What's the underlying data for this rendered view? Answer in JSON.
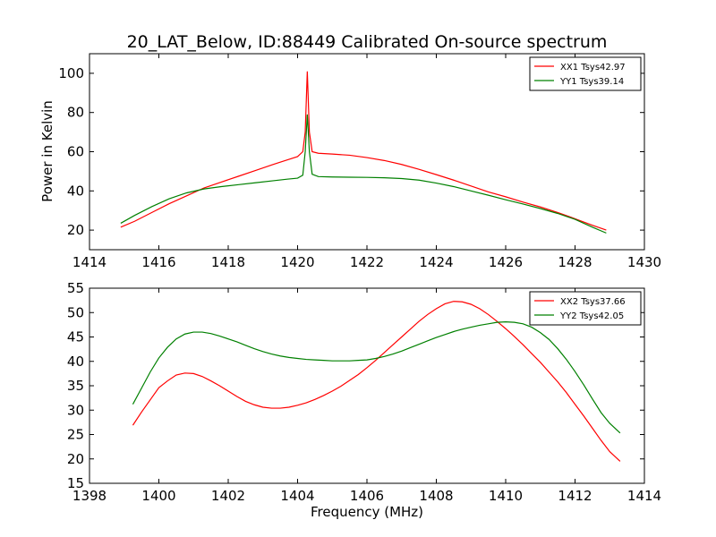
{
  "figure": {
    "title": "20_LAT_Below, ID:88449 Calibrated On-source spectrum",
    "ylabel": "Power in Kelvin",
    "xlabel": "Frequency (MHz)"
  },
  "chart_data": [
    {
      "type": "line",
      "xlim": [
        1414,
        1430
      ],
      "ylim": [
        10,
        110
      ],
      "xticks": [
        1414,
        1416,
        1418,
        1420,
        1422,
        1424,
        1426,
        1428,
        1430
      ],
      "yticks": [
        20,
        40,
        60,
        80,
        100
      ],
      "grid": false,
      "legend": "top-right",
      "series": [
        {
          "name": "XX1 Tsys42.97",
          "color": "#ff0000",
          "x": [
            1414.9,
            1415.3,
            1415.8,
            1416.3,
            1416.8,
            1417.3,
            1417.8,
            1418.3,
            1418.8,
            1419.3,
            1419.7,
            1420.0,
            1420.15,
            1420.22,
            1420.28,
            1420.34,
            1420.42,
            1420.6,
            1421.0,
            1421.5,
            1422.0,
            1422.5,
            1423.0,
            1423.5,
            1424.0,
            1424.5,
            1425.0,
            1425.5,
            1426.0,
            1426.5,
            1427.0,
            1427.5,
            1428.0,
            1428.5,
            1428.9
          ],
          "y": [
            21.5,
            24.5,
            29.0,
            33.5,
            37.5,
            41.5,
            44.5,
            47.5,
            50.5,
            53.5,
            55.8,
            57.5,
            60.0,
            70.0,
            101.0,
            70.0,
            60.0,
            59.2,
            58.8,
            58.2,
            57.0,
            55.5,
            53.5,
            51.0,
            48.3,
            45.5,
            42.5,
            39.5,
            37.0,
            34.3,
            31.8,
            29.0,
            25.8,
            22.5,
            20.0
          ]
        },
        {
          "name": "YY1 Tsys39.14",
          "color": "#008000",
          "x": [
            1414.9,
            1415.3,
            1415.8,
            1416.3,
            1416.8,
            1417.3,
            1417.8,
            1418.3,
            1418.8,
            1419.3,
            1419.7,
            1420.0,
            1420.15,
            1420.22,
            1420.28,
            1420.34,
            1420.42,
            1420.6,
            1421.0,
            1421.5,
            1422.0,
            1422.5,
            1423.0,
            1423.5,
            1424.0,
            1424.5,
            1425.0,
            1425.5,
            1426.0,
            1426.5,
            1427.0,
            1427.5,
            1428.0,
            1428.5,
            1428.9
          ],
          "y": [
            23.5,
            27.5,
            32.0,
            36.0,
            39.0,
            41.0,
            42.2,
            43.2,
            44.2,
            45.2,
            46.0,
            46.5,
            48.0,
            60.0,
            79.0,
            60.0,
            48.5,
            47.3,
            47.1,
            47.0,
            46.9,
            46.7,
            46.3,
            45.5,
            44.0,
            42.2,
            40.0,
            37.8,
            35.5,
            33.3,
            31.0,
            28.5,
            25.5,
            21.5,
            18.5
          ]
        }
      ]
    },
    {
      "type": "line",
      "xlim": [
        1398,
        1414
      ],
      "ylim": [
        15,
        55
      ],
      "xticks": [
        1398,
        1400,
        1402,
        1404,
        1406,
        1408,
        1410,
        1412,
        1414
      ],
      "yticks": [
        15,
        20,
        25,
        30,
        35,
        40,
        45,
        50,
        55
      ],
      "grid": false,
      "legend": "top-right",
      "series": [
        {
          "name": "XX2 Tsys37.66",
          "color": "#ff0000",
          "x": [
            1399.25,
            1399.5,
            1399.75,
            1400.0,
            1400.25,
            1400.5,
            1400.75,
            1401.0,
            1401.25,
            1401.5,
            1401.75,
            1402.0,
            1402.25,
            1402.5,
            1402.75,
            1403.0,
            1403.25,
            1403.5,
            1403.75,
            1404.0,
            1404.25,
            1404.5,
            1404.75,
            1405.0,
            1405.25,
            1405.5,
            1405.75,
            1406.0,
            1406.25,
            1406.5,
            1406.75,
            1407.0,
            1407.25,
            1407.5,
            1407.75,
            1408.0,
            1408.25,
            1408.5,
            1408.75,
            1409.0,
            1409.25,
            1409.5,
            1409.75,
            1410.0,
            1410.25,
            1410.5,
            1410.75,
            1411.0,
            1411.25,
            1411.5,
            1411.75,
            1412.0,
            1412.25,
            1412.5,
            1412.75,
            1413.0,
            1413.3
          ],
          "y": [
            26.9,
            29.6,
            32.1,
            34.6,
            36.0,
            37.2,
            37.6,
            37.5,
            36.9,
            36.0,
            35.0,
            33.9,
            32.8,
            31.8,
            31.1,
            30.6,
            30.4,
            30.4,
            30.6,
            31.0,
            31.5,
            32.2,
            33.0,
            33.9,
            34.9,
            36.1,
            37.3,
            38.7,
            40.2,
            41.8,
            43.4,
            45.0,
            46.6,
            48.2,
            49.6,
            50.8,
            51.8,
            52.3,
            52.2,
            51.7,
            50.8,
            49.6,
            48.2,
            46.7,
            45.1,
            43.4,
            41.6,
            39.8,
            37.8,
            35.8,
            33.6,
            31.2,
            28.8,
            26.3,
            23.8,
            21.5,
            19.5
          ]
        },
        {
          "name": "YY2 Tsys42.05",
          "color": "#008000",
          "x": [
            1399.25,
            1399.5,
            1399.75,
            1400.0,
            1400.25,
            1400.5,
            1400.75,
            1401.0,
            1401.25,
            1401.5,
            1401.75,
            1402.0,
            1402.25,
            1402.5,
            1402.75,
            1403.0,
            1403.25,
            1403.5,
            1403.75,
            1404.0,
            1404.25,
            1404.5,
            1404.75,
            1405.0,
            1405.25,
            1405.5,
            1405.75,
            1406.0,
            1406.25,
            1406.5,
            1406.75,
            1407.0,
            1407.25,
            1407.5,
            1407.75,
            1408.0,
            1408.25,
            1408.5,
            1408.75,
            1409.0,
            1409.25,
            1409.5,
            1409.75,
            1410.0,
            1410.25,
            1410.5,
            1410.75,
            1411.0,
            1411.25,
            1411.5,
            1411.75,
            1412.0,
            1412.25,
            1412.5,
            1412.75,
            1413.0,
            1413.3
          ],
          "y": [
            31.2,
            34.5,
            37.8,
            40.7,
            42.9,
            44.6,
            45.6,
            46.0,
            46.0,
            45.7,
            45.2,
            44.6,
            44.0,
            43.3,
            42.6,
            42.0,
            41.5,
            41.1,
            40.8,
            40.6,
            40.4,
            40.3,
            40.2,
            40.1,
            40.1,
            40.1,
            40.2,
            40.3,
            40.6,
            41.0,
            41.5,
            42.1,
            42.8,
            43.5,
            44.2,
            44.9,
            45.5,
            46.1,
            46.6,
            47.0,
            47.4,
            47.7,
            48.0,
            48.1,
            48.0,
            47.7,
            47.0,
            45.9,
            44.5,
            42.6,
            40.4,
            37.9,
            35.2,
            32.3,
            29.5,
            27.3,
            25.3
          ]
        }
      ]
    }
  ]
}
